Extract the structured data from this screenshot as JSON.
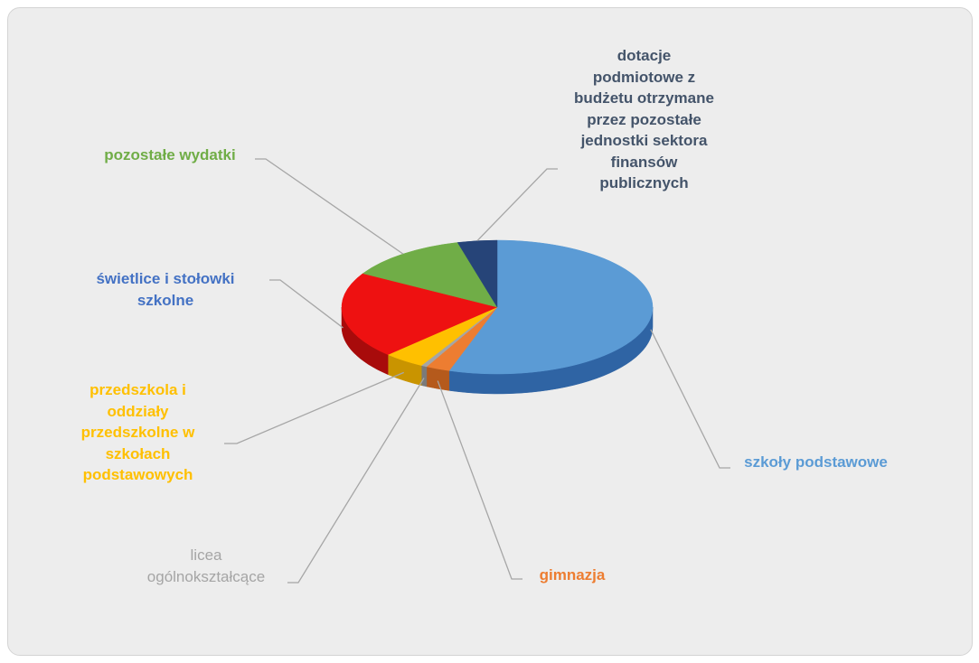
{
  "chart_data": {
    "type": "pie",
    "title": "",
    "legend": "none",
    "slices": [
      {
        "label": "szkoły podstawowe",
        "value": 55.0,
        "color": "#5b9bd5",
        "side": "#2f64a4"
      },
      {
        "label": "gimnazja",
        "value": 2.5,
        "color": "#ed7d31",
        "side": "#b55a1c"
      },
      {
        "label": "licea\nogólnokształcące",
        "value": 0.6,
        "color": "#a5a5a5",
        "side": "#7a7a7a"
      },
      {
        "label": "przedszkola i\noddziały\nprzedszkolne w\nszkołach\npodstawowych",
        "value": 4.3,
        "color": "#ffc000",
        "side": "#c99400"
      },
      {
        "label": "świetlice i stołowki\nszkolne",
        "value": 21.0,
        "color": "#ee1111",
        "side": "#a80b0b"
      },
      {
        "label": "pozostałe wydatki",
        "value": 12.5,
        "color": "#70ad47",
        "side": "#4e7e30"
      },
      {
        "label": "dotacje\npodmiotowe z\nbudżetu otrzymane\nprzez pozostałe\njednostki sektora\nfinansów\npublicznych",
        "value": 4.1,
        "color": "#264478",
        "side": "#182c50"
      }
    ],
    "label_colors": [
      "#5b9bd5",
      "#ed7d31",
      "#a5a5a5",
      "#ffc000",
      "#4472c4",
      "#70ad47",
      "#44546a"
    ]
  }
}
